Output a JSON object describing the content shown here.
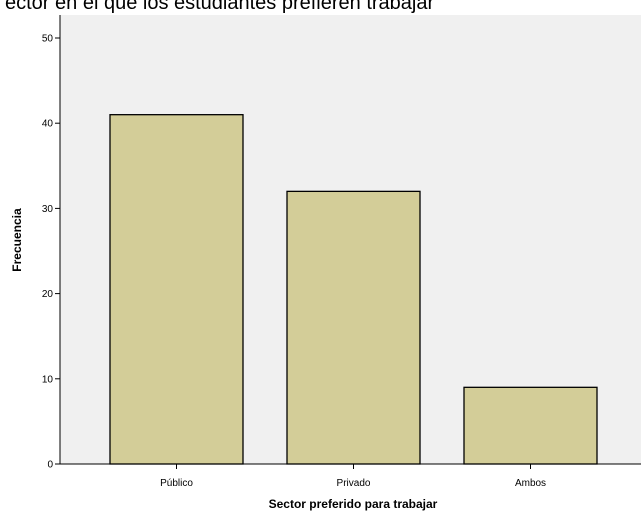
{
  "chart_data": {
    "type": "bar",
    "title": "ector en el que los estudiantes prefieren trabajar",
    "xlabel": "Sector preferido para trabajar",
    "ylabel": "Frecuencia",
    "categories": [
      "Público",
      "Privado",
      "Ambos"
    ],
    "values": [
      41,
      32,
      9
    ],
    "ylim": [
      0,
      50
    ],
    "yticks": [
      0,
      10,
      20,
      30,
      40,
      50
    ],
    "grid": false,
    "legend": "none",
    "colors": {
      "bar_fill": "#d3cd98",
      "bar_stroke": "#000000",
      "plot_background": "#f0f0f0"
    }
  }
}
